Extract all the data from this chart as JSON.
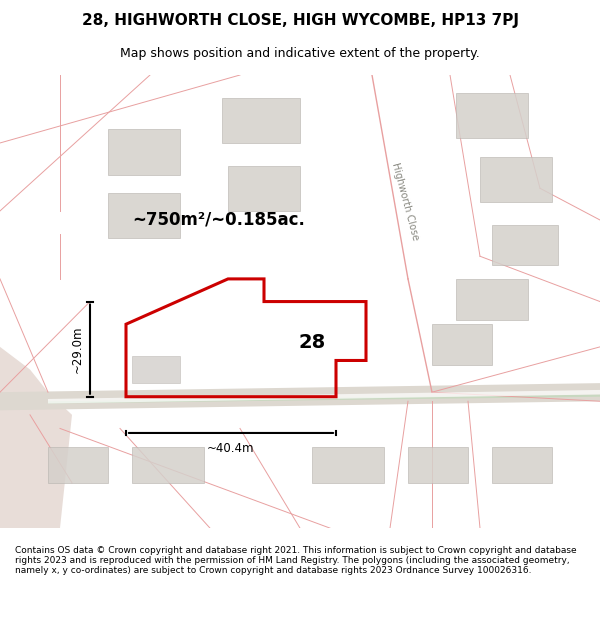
{
  "title": "28, HIGHWORTH CLOSE, HIGH WYCOMBE, HP13 7PJ",
  "subtitle": "Map shows position and indicative extent of the property.",
  "footer": "Contains OS data © Crown copyright and database right 2021. This information is subject to Crown copyright and database rights 2023 and is reproduced with the permission of HM Land Registry. The polygons (including the associated geometry, namely x, y co-ordinates) are subject to Crown copyright and database rights 2023 Ordnance Survey 100026316.",
  "bg_color": "#f5f0ee",
  "map_bg": "#f9f6f4",
  "road_color": "#d4b8b0",
  "plot_color": "#cc0000",
  "building_color": "#d0ccc8",
  "building_edge": "#b0aba6",
  "area_text": "~750m²/~0.185ac.",
  "number_text": "28",
  "dim_width": "~40.4m",
  "dim_height": "~29.0m",
  "street_label": "Highworth Close"
}
